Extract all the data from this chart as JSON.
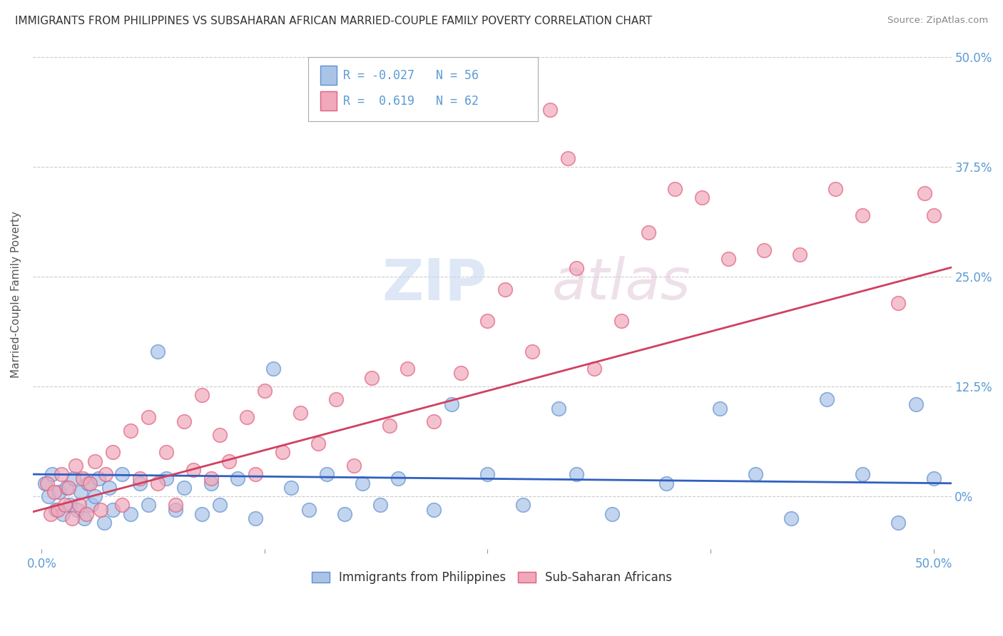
{
  "title": "IMMIGRANTS FROM PHILIPPINES VS SUBSAHARAN AFRICAN MARRIED-COUPLE FAMILY POVERTY CORRELATION CHART",
  "source": "Source: ZipAtlas.com",
  "ylabel": "Married-Couple Family Poverty",
  "blue_R": -0.027,
  "blue_N": 56,
  "pink_R": 0.619,
  "pink_N": 62,
  "blue_color": "#aac4e8",
  "pink_color": "#f0a8ba",
  "blue_line_color": "#3060c0",
  "pink_line_color": "#d04060",
  "blue_edge_color": "#6090d0",
  "pink_edge_color": "#e06080",
  "legend_label_blue": "Immigrants from Philippines",
  "legend_label_pink": "Sub-Saharan Africans",
  "background_color": "#ffffff",
  "grid_color": "#cccccc",
  "watermark": "ZIPatlas",
  "axis_color": "#5b9bd5",
  "blue_scatter": [
    [
      0.2,
      1.5
    ],
    [
      0.4,
      0.0
    ],
    [
      0.6,
      2.5
    ],
    [
      0.8,
      -1.5
    ],
    [
      1.0,
      0.5
    ],
    [
      1.2,
      -2.0
    ],
    [
      1.4,
      1.0
    ],
    [
      1.6,
      -1.0
    ],
    [
      1.8,
      2.0
    ],
    [
      2.0,
      -1.5
    ],
    [
      2.2,
      0.5
    ],
    [
      2.4,
      -2.5
    ],
    [
      2.6,
      1.5
    ],
    [
      2.8,
      -1.0
    ],
    [
      3.0,
      0.0
    ],
    [
      3.2,
      2.0
    ],
    [
      3.5,
      -3.0
    ],
    [
      3.8,
      1.0
    ],
    [
      4.0,
      -1.5
    ],
    [
      4.5,
      2.5
    ],
    [
      5.0,
      -2.0
    ],
    [
      5.5,
      1.5
    ],
    [
      6.0,
      -1.0
    ],
    [
      6.5,
      16.5
    ],
    [
      7.0,
      2.0
    ],
    [
      7.5,
      -1.5
    ],
    [
      8.0,
      1.0
    ],
    [
      9.0,
      -2.0
    ],
    [
      9.5,
      1.5
    ],
    [
      10.0,
      -1.0
    ],
    [
      11.0,
      2.0
    ],
    [
      12.0,
      -2.5
    ],
    [
      13.0,
      14.5
    ],
    [
      14.0,
      1.0
    ],
    [
      15.0,
      -1.5
    ],
    [
      16.0,
      2.5
    ],
    [
      17.0,
      -2.0
    ],
    [
      18.0,
      1.5
    ],
    [
      19.0,
      -1.0
    ],
    [
      20.0,
      2.0
    ],
    [
      22.0,
      -1.5
    ],
    [
      23.0,
      10.5
    ],
    [
      25.0,
      2.5
    ],
    [
      27.0,
      -1.0
    ],
    [
      29.0,
      10.0
    ],
    [
      30.0,
      2.5
    ],
    [
      32.0,
      -2.0
    ],
    [
      35.0,
      1.5
    ],
    [
      38.0,
      10.0
    ],
    [
      40.0,
      2.5
    ],
    [
      42.0,
      -2.5
    ],
    [
      44.0,
      11.0
    ],
    [
      46.0,
      2.5
    ],
    [
      48.0,
      -3.0
    ],
    [
      49.0,
      10.5
    ],
    [
      50.0,
      2.0
    ]
  ],
  "pink_scatter": [
    [
      0.3,
      1.5
    ],
    [
      0.5,
      -2.0
    ],
    [
      0.7,
      0.5
    ],
    [
      0.9,
      -1.5
    ],
    [
      1.1,
      2.5
    ],
    [
      1.3,
      -1.0
    ],
    [
      1.5,
      1.0
    ],
    [
      1.7,
      -2.5
    ],
    [
      1.9,
      3.5
    ],
    [
      2.1,
      -1.0
    ],
    [
      2.3,
      2.0
    ],
    [
      2.5,
      -2.0
    ],
    [
      2.7,
      1.5
    ],
    [
      3.0,
      4.0
    ],
    [
      3.3,
      -1.5
    ],
    [
      3.6,
      2.5
    ],
    [
      4.0,
      5.0
    ],
    [
      4.5,
      -1.0
    ],
    [
      5.0,
      7.5
    ],
    [
      5.5,
      2.0
    ],
    [
      6.0,
      9.0
    ],
    [
      6.5,
      1.5
    ],
    [
      7.0,
      5.0
    ],
    [
      7.5,
      -1.0
    ],
    [
      8.0,
      8.5
    ],
    [
      8.5,
      3.0
    ],
    [
      9.0,
      11.5
    ],
    [
      9.5,
      2.0
    ],
    [
      10.0,
      7.0
    ],
    [
      10.5,
      4.0
    ],
    [
      11.5,
      9.0
    ],
    [
      12.0,
      2.5
    ],
    [
      12.5,
      12.0
    ],
    [
      13.5,
      5.0
    ],
    [
      14.5,
      9.5
    ],
    [
      15.5,
      6.0
    ],
    [
      16.5,
      11.0
    ],
    [
      17.5,
      3.5
    ],
    [
      18.5,
      13.5
    ],
    [
      19.5,
      8.0
    ],
    [
      20.5,
      14.5
    ],
    [
      22.0,
      8.5
    ],
    [
      23.5,
      14.0
    ],
    [
      25.0,
      20.0
    ],
    [
      26.0,
      23.5
    ],
    [
      27.5,
      16.5
    ],
    [
      28.5,
      44.0
    ],
    [
      29.5,
      38.5
    ],
    [
      31.0,
      14.5
    ],
    [
      32.5,
      20.0
    ],
    [
      34.0,
      30.0
    ],
    [
      35.5,
      35.0
    ],
    [
      37.0,
      34.0
    ],
    [
      38.5,
      27.0
    ],
    [
      40.5,
      28.0
    ],
    [
      42.5,
      27.5
    ],
    [
      44.5,
      35.0
    ],
    [
      46.0,
      32.0
    ],
    [
      48.0,
      22.0
    ],
    [
      49.5,
      34.5
    ],
    [
      50.0,
      32.0
    ],
    [
      30.0,
      26.0
    ]
  ],
  "blue_trend": [
    -0.02,
    2.5
  ],
  "pink_trend": [
    0.54,
    -1.5
  ],
  "xlim": [
    -0.5,
    51
  ],
  "ylim": [
    -6,
    52
  ],
  "ytick_positions": [
    0,
    12.5,
    25.0,
    37.5,
    50.0
  ],
  "xtick_positions": [
    0,
    12.5,
    25.0,
    37.5,
    50.0
  ]
}
